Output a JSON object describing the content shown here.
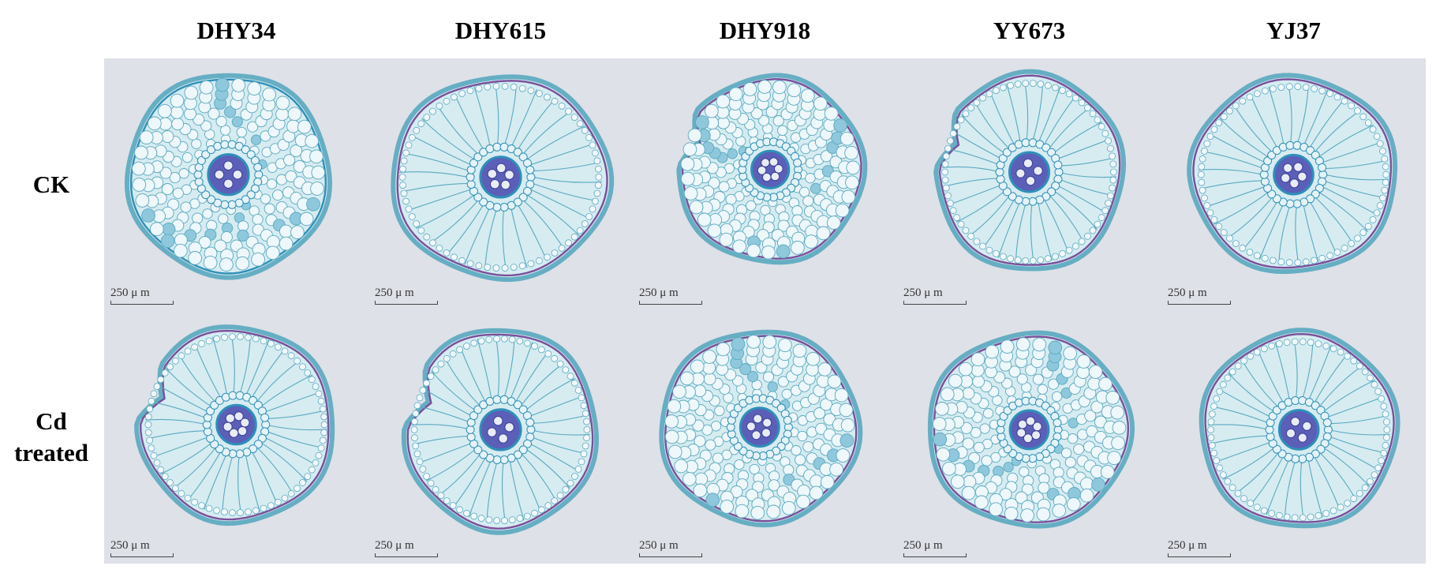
{
  "columns": [
    "DHY34",
    "DHY615",
    "DHY918",
    "YY673",
    "YJ37"
  ],
  "rows": [
    {
      "label_line1": "CK",
      "label_line2": ""
    },
    {
      "label_line1": "Cd",
      "label_line2": "treated"
    }
  ],
  "scale_bar_label": "250 μ m",
  "colors": {
    "background": "#dfe1e8",
    "cell_wall": "#5aa9c0",
    "cell_fill": "#d6eef3",
    "stain_blue": "#2f8fb8",
    "stele": "#5b5fb8",
    "endodermis_purple": "#7a4f9a",
    "vessel": "#e8ecf5"
  }
}
